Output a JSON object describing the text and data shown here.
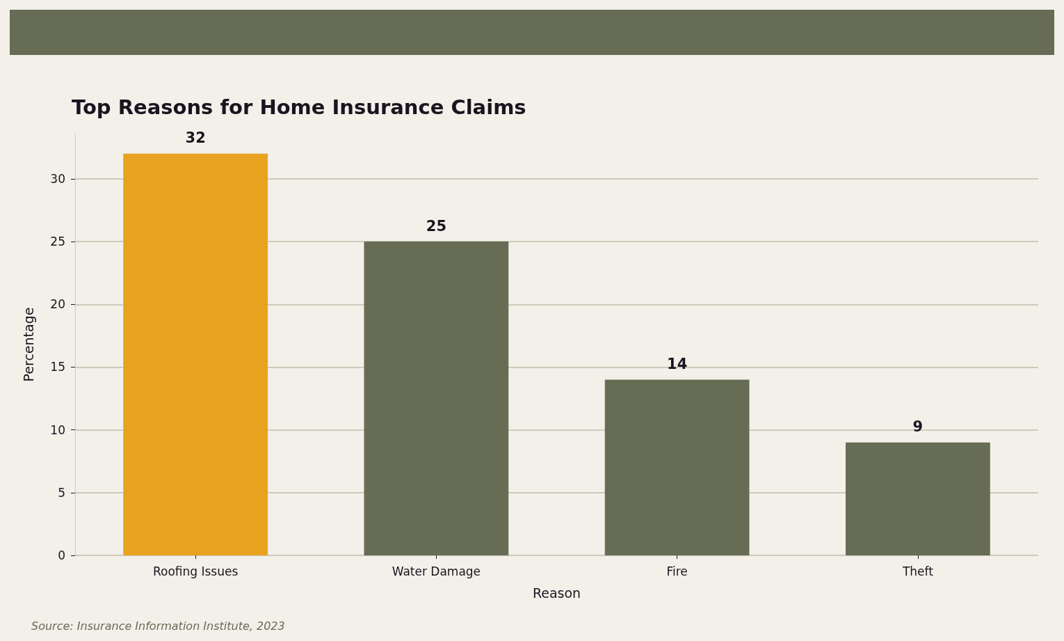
{
  "chart_data": {
    "type": "bar",
    "title": "Top Reasons for Home Insurance Claims",
    "xlabel": "Reason",
    "ylabel": "Percentage",
    "categories": [
      "Roofing Issues",
      "Water Damage",
      "Fire",
      "Theft"
    ],
    "values": [
      32,
      25,
      14,
      9
    ],
    "colors": [
      "#e8a321",
      "#676c55",
      "#676c55",
      "#676c55"
    ],
    "ylim": [
      0,
      33.6
    ],
    "yticks": [
      0,
      5,
      10,
      15,
      20,
      25,
      30
    ],
    "grid": "y",
    "data_labels": true,
    "annotations": [
      "Source: Insurance Information Institute, 2023"
    ]
  }
}
